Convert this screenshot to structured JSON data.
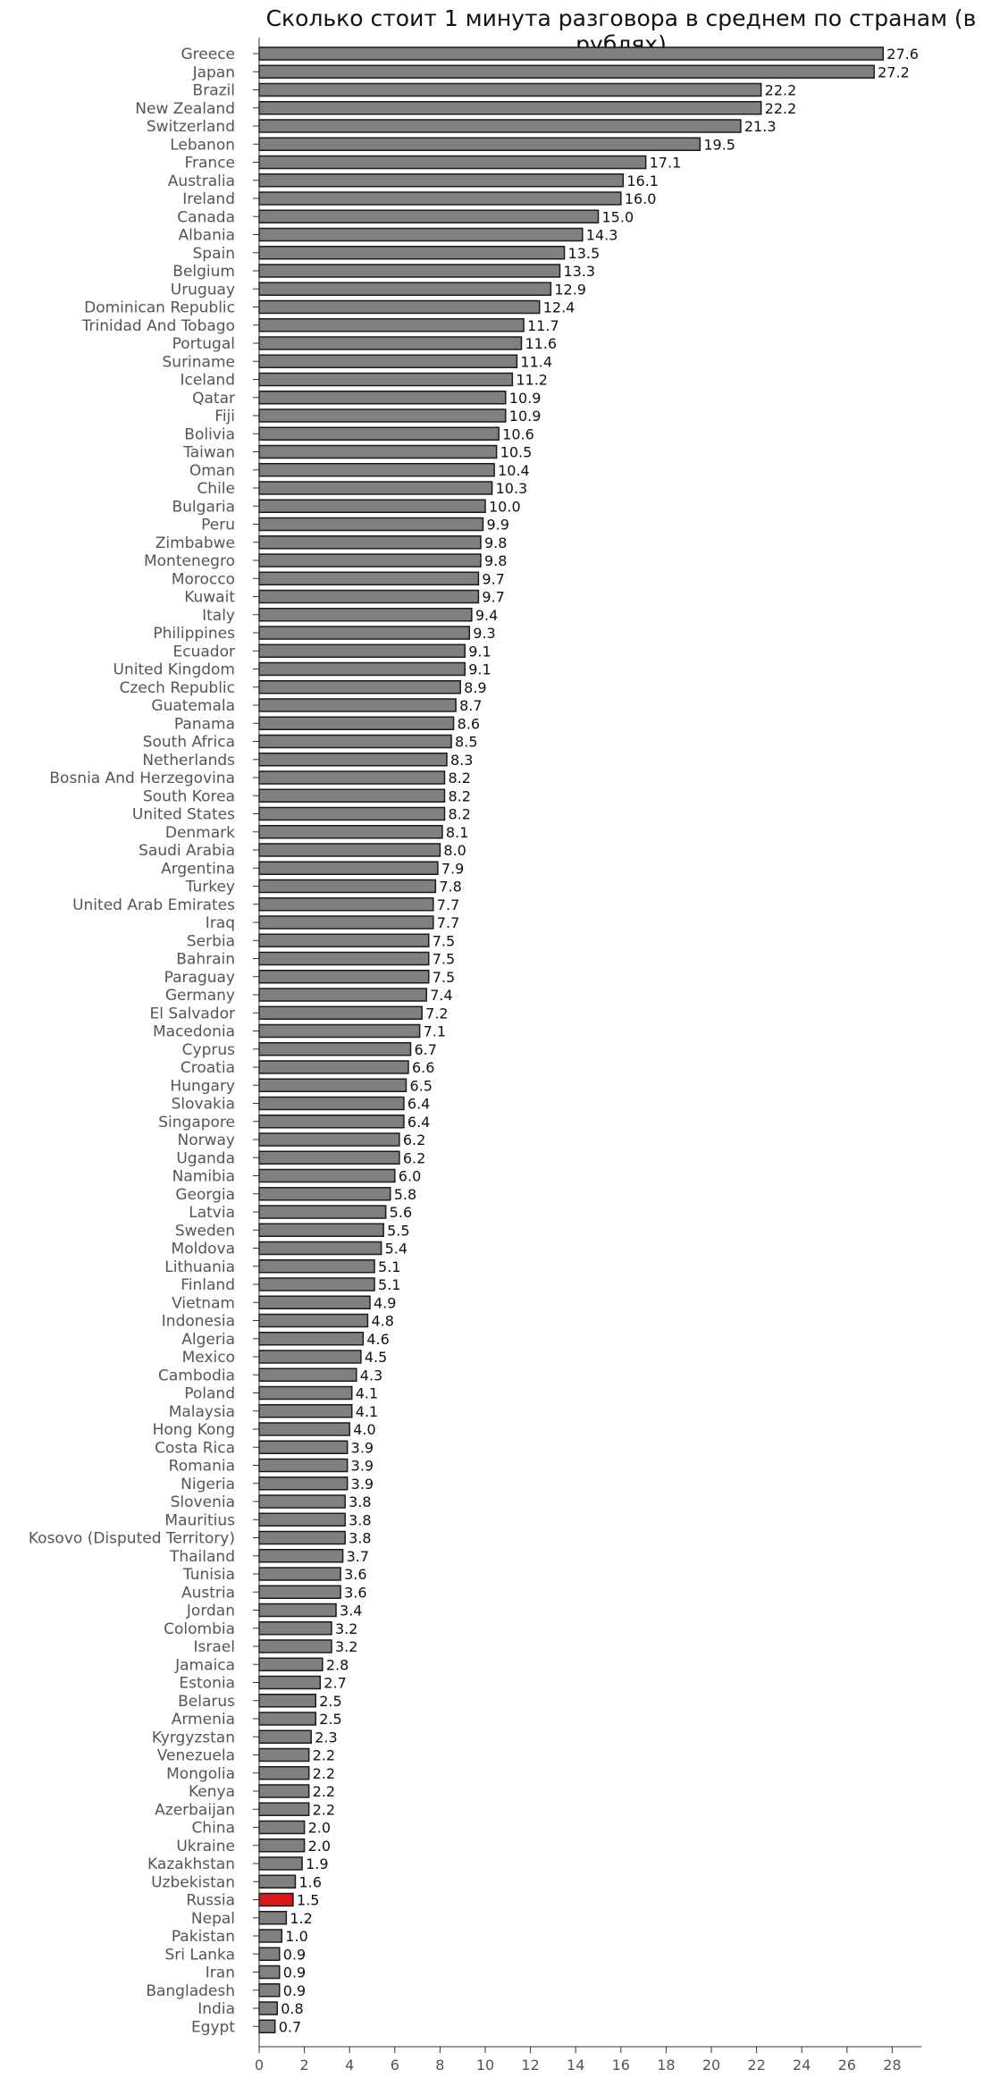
{
  "chart_data": {
    "type": "bar",
    "orientation": "horizontal",
    "title": "Сколько стоит 1 минута разговора в среднем по странам (в рублях)",
    "xlabel": "",
    "ylabel": "",
    "xlim": [
      0,
      29.3
    ],
    "xticks": [
      0,
      2,
      4,
      6,
      8,
      10,
      12,
      14,
      16,
      18,
      20,
      22,
      24,
      26,
      28
    ],
    "grid": false,
    "legend": "none",
    "colors": {
      "bar": "#808080",
      "bar_edge": "#1a1a1a",
      "highlight": "#d7191c",
      "tick_label": "#555555",
      "value_label": "#111111"
    },
    "highlight_category": "Russia",
    "categories": [
      "Greece",
      "Japan",
      "Brazil",
      "New Zealand",
      "Switzerland",
      "Lebanon",
      "France",
      "Australia",
      "Ireland",
      "Canada",
      "Albania",
      "Spain",
      "Belgium",
      "Uruguay",
      "Dominican Republic",
      "Trinidad And Tobago",
      "Portugal",
      "Suriname",
      "Iceland",
      "Qatar",
      "Fiji",
      "Bolivia",
      "Taiwan",
      "Oman",
      "Chile",
      "Bulgaria",
      "Peru",
      "Zimbabwe",
      "Montenegro",
      "Morocco",
      "Kuwait",
      "Italy",
      "Philippines",
      "Ecuador",
      "United Kingdom",
      "Czech Republic",
      "Guatemala",
      "Panama",
      "South Africa",
      "Netherlands",
      "Bosnia And Herzegovina",
      "South Korea",
      "United States",
      "Denmark",
      "Saudi Arabia",
      "Argentina",
      "Turkey",
      "United Arab Emirates",
      "Iraq",
      "Serbia",
      "Bahrain",
      "Paraguay",
      "Germany",
      "El Salvador",
      "Macedonia",
      "Cyprus",
      "Croatia",
      "Hungary",
      "Slovakia",
      "Singapore",
      "Norway",
      "Uganda",
      "Namibia",
      "Georgia",
      "Latvia",
      "Sweden",
      "Moldova",
      "Lithuania",
      "Finland",
      "Vietnam",
      "Indonesia",
      "Algeria",
      "Mexico",
      "Cambodia",
      "Poland",
      "Malaysia",
      "Hong Kong",
      "Costa Rica",
      "Romania",
      "Nigeria",
      "Slovenia",
      "Mauritius",
      "Kosovo (Disputed Territory)",
      "Thailand",
      "Tunisia",
      "Austria",
      "Jordan",
      "Colombia",
      "Israel",
      "Jamaica",
      "Estonia",
      "Belarus",
      "Armenia",
      "Kyrgyzstan",
      "Venezuela",
      "Mongolia",
      "Kenya",
      "Azerbaijan",
      "China",
      "Ukraine",
      "Kazakhstan",
      "Uzbekistan",
      "Russia",
      "Nepal",
      "Pakistan",
      "Sri Lanka",
      "Iran",
      "Bangladesh",
      "India",
      "Egypt"
    ],
    "values": [
      27.6,
      27.2,
      22.2,
      22.2,
      21.3,
      19.5,
      17.1,
      16.1,
      16.0,
      15.0,
      14.3,
      13.5,
      13.3,
      12.9,
      12.4,
      11.7,
      11.6,
      11.4,
      11.2,
      10.9,
      10.9,
      10.6,
      10.5,
      10.4,
      10.3,
      10.0,
      9.9,
      9.8,
      9.8,
      9.7,
      9.7,
      9.4,
      9.3,
      9.1,
      9.1,
      8.9,
      8.7,
      8.6,
      8.5,
      8.3,
      8.2,
      8.2,
      8.2,
      8.1,
      8.0,
      7.9,
      7.8,
      7.7,
      7.7,
      7.5,
      7.5,
      7.5,
      7.4,
      7.2,
      7.1,
      6.7,
      6.6,
      6.5,
      6.4,
      6.4,
      6.2,
      6.2,
      6.0,
      5.8,
      5.6,
      5.5,
      5.4,
      5.1,
      5.1,
      4.9,
      4.8,
      4.6,
      4.5,
      4.3,
      4.1,
      4.1,
      4.0,
      3.9,
      3.9,
      3.9,
      3.8,
      3.8,
      3.8,
      3.7,
      3.6,
      3.6,
      3.4,
      3.2,
      3.2,
      2.8,
      2.7,
      2.5,
      2.5,
      2.3,
      2.2,
      2.2,
      2.2,
      2.2,
      2.0,
      2.0,
      1.9,
      1.6,
      1.5,
      1.2,
      1.0,
      0.9,
      0.9,
      0.9,
      0.8,
      0.7
    ],
    "value_labels": [
      "27.6",
      "27.2",
      "22.2",
      "22.2",
      "21.3",
      "19.5",
      "17.1",
      "16.1",
      "16.0",
      "15.0",
      "14.3",
      "13.5",
      "13.3",
      "12.9",
      "12.4",
      "11.7",
      "11.6",
      "11.4",
      "11.2",
      "10.9",
      "10.9",
      "10.6",
      "10.5",
      "10.4",
      "10.3",
      "10.0",
      "9.9",
      "9.8",
      "9.8",
      "9.7",
      "9.7",
      "9.4",
      "9.3",
      "9.1",
      "9.1",
      "8.9",
      "8.7",
      "8.6",
      "8.5",
      "8.3",
      "8.2",
      "8.2",
      "8.2",
      "8.1",
      "8.0",
      "7.9",
      "7.8",
      "7.7",
      "7.7",
      "7.5",
      "7.5",
      "7.5",
      "7.4",
      "7.2",
      "7.1",
      "6.7",
      "6.6",
      "6.5",
      "6.4",
      "6.4",
      "6.2",
      "6.2",
      "6.0",
      "5.8",
      "5.6",
      "5.5",
      "5.4",
      "5.1",
      "5.1",
      "4.9",
      "4.8",
      "4.6",
      "4.5",
      "4.3",
      "4.1",
      "4.1",
      "4.0",
      "3.9",
      "3.9",
      "3.9",
      "3.8",
      "3.8",
      "3.8",
      "3.7",
      "3.6",
      "3.6",
      "3.4",
      "3.2",
      "3.2",
      "2.8",
      "2.7",
      "2.5",
      "2.5",
      "2.3",
      "2.2",
      "2.2",
      "2.2",
      "2.2",
      "2.0",
      "2.0",
      "1.9",
      "1.6",
      "1.5",
      "1.2",
      "1.0",
      "0.9",
      "0.9",
      "0.9",
      "0.8",
      "0.7"
    ]
  }
}
